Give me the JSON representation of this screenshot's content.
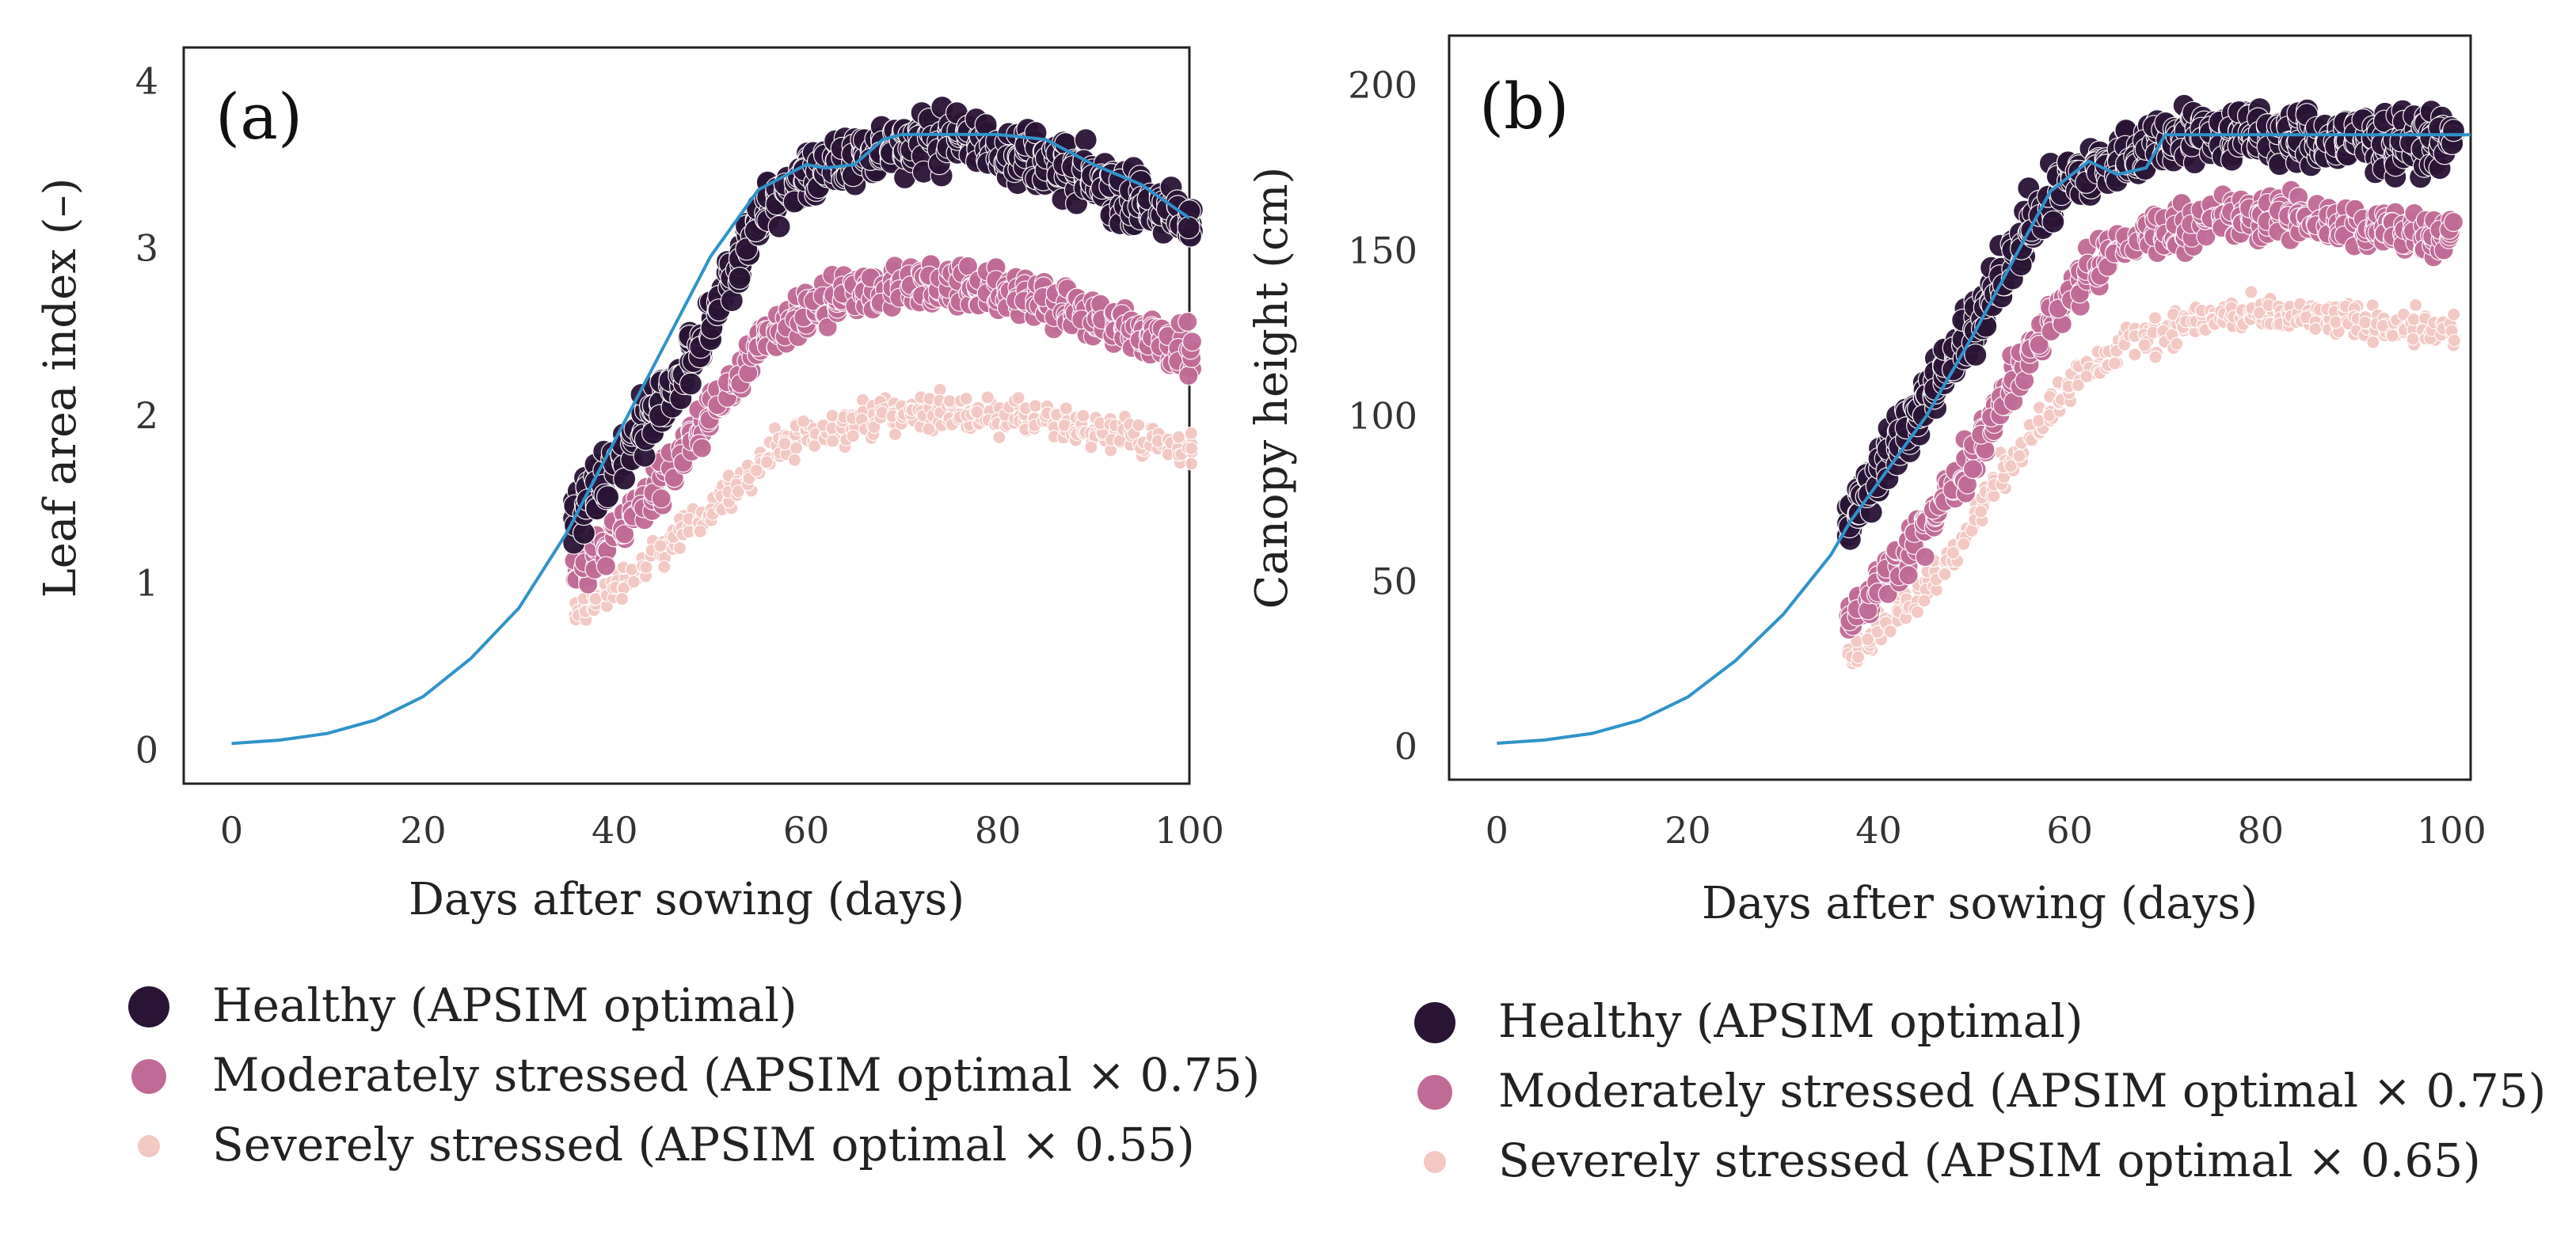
{
  "colors": {
    "healthy": "#2a1436",
    "moderate": "#c06a96",
    "severe": "#f3c7c2",
    "line": "#2f93c9",
    "axis": "#222222"
  },
  "chart_data": [
    {
      "type": "scatter",
      "panel_label": "(a)",
      "xlabel": "Days after sowing (days)",
      "ylabel": "Leaf area index (–)",
      "xlim": [
        -5,
        100
      ],
      "ylim": [
        -0.2,
        4.2
      ],
      "xticks": [
        "0",
        "20",
        "40",
        "60",
        "80",
        "100"
      ],
      "yticks": [
        "0",
        "1",
        "2",
        "3",
        "4"
      ],
      "series": [
        {
          "name": "Healthy (APSIM optimal)",
          "x": [
            36,
            40,
            44,
            48,
            52,
            56,
            60,
            64,
            68,
            72,
            76,
            80,
            84,
            88,
            92,
            96,
            100
          ],
          "y": [
            1.4,
            1.7,
            2.0,
            2.35,
            2.8,
            3.25,
            3.45,
            3.5,
            3.6,
            3.65,
            3.65,
            3.6,
            3.55,
            3.45,
            3.35,
            3.25,
            3.15
          ]
        },
        {
          "name": "Moderately stressed (APSIM optimal × 0.75)",
          "x": [
            36,
            40,
            44,
            48,
            52,
            56,
            60,
            64,
            68,
            72,
            76,
            80,
            84,
            88,
            92,
            96,
            100
          ],
          "y": [
            1.05,
            1.3,
            1.55,
            1.85,
            2.15,
            2.45,
            2.6,
            2.7,
            2.75,
            2.78,
            2.78,
            2.75,
            2.7,
            2.62,
            2.55,
            2.48,
            2.4
          ]
        },
        {
          "name": "Severely stressed (APSIM optimal × 0.55)",
          "x": [
            36,
            40,
            44,
            48,
            52,
            56,
            60,
            64,
            68,
            72,
            76,
            80,
            84,
            88,
            92,
            96,
            100
          ],
          "y": [
            0.8,
            0.98,
            1.15,
            1.35,
            1.55,
            1.75,
            1.88,
            1.95,
            2.0,
            2.02,
            2.02,
            2.0,
            1.97,
            1.93,
            1.9,
            1.85,
            1.8
          ]
        }
      ],
      "model_line": {
        "x": [
          0,
          5,
          10,
          15,
          20,
          25,
          30,
          35,
          40,
          45,
          50,
          55,
          60,
          62,
          65,
          68,
          70,
          75,
          80,
          85,
          90,
          95,
          100
        ],
        "y": [
          0.04,
          0.06,
          0.1,
          0.18,
          0.32,
          0.55,
          0.85,
          1.3,
          1.85,
          2.4,
          2.95,
          3.35,
          3.5,
          3.48,
          3.5,
          3.65,
          3.68,
          3.68,
          3.68,
          3.65,
          3.5,
          3.38,
          3.18
        ]
      },
      "legend": [
        {
          "label": "Healthy (APSIM optimal)"
        },
        {
          "label": "Moderately stressed (APSIM optimal × 0.75)"
        },
        {
          "label": "Severely stressed (APSIM optimal × 0.55)"
        }
      ]
    },
    {
      "type": "scatter",
      "panel_label": "(b)",
      "xlabel": "Days after sowing (days)",
      "ylabel": "Canopy height (cm)",
      "xlim": [
        -5,
        102
      ],
      "ylim": [
        -10,
        215
      ],
      "xticks": [
        "0",
        "20",
        "40",
        "60",
        "80",
        "100"
      ],
      "yticks": [
        "0",
        "50",
        "100",
        "150",
        "200"
      ],
      "series": [
        {
          "name": "Healthy (APSIM optimal)",
          "x": [
            37,
            40,
            44,
            48,
            52,
            56,
            60,
            64,
            68,
            72,
            76,
            80,
            84,
            88,
            92,
            96,
            100
          ],
          "y": [
            68,
            85,
            100,
            118,
            138,
            158,
            172,
            175,
            182,
            185,
            185,
            185,
            184,
            183,
            183,
            183,
            183
          ]
        },
        {
          "name": "Moderately stressed (APSIM optimal × 0.75)",
          "x": [
            37,
            40,
            44,
            48,
            52,
            56,
            60,
            64,
            68,
            72,
            76,
            80,
            84,
            88,
            92,
            96,
            100
          ],
          "y": [
            38,
            48,
            62,
            80,
            100,
            120,
            138,
            148,
            155,
            158,
            160,
            160,
            160,
            158,
            157,
            156,
            155
          ]
        },
        {
          "name": "Severely stressed (APSIM optimal × 0.65)",
          "x": [
            37,
            40,
            44,
            48,
            52,
            56,
            60,
            64,
            68,
            72,
            76,
            80,
            84,
            88,
            92,
            96,
            100
          ],
          "y": [
            28,
            35,
            45,
            60,
            78,
            95,
            110,
            118,
            124,
            128,
            130,
            130,
            130,
            129,
            128,
            127,
            126
          ]
        }
      ],
      "model_line": {
        "x": [
          0,
          5,
          10,
          15,
          20,
          25,
          30,
          35,
          37,
          40,
          45,
          50,
          55,
          58,
          62,
          65,
          68,
          70,
          80,
          90,
          100,
          102
        ],
        "y": [
          1,
          2,
          4,
          8,
          15,
          26,
          40,
          58,
          68,
          80,
          100,
          125,
          152,
          168,
          177,
          173,
          175,
          185,
          185,
          185,
          185,
          185
        ]
      },
      "legend": [
        {
          "label": "Healthy (APSIM optimal)"
        },
        {
          "label": "Moderately stressed (APSIM optimal × 0.75)"
        },
        {
          "label": "Severely stressed (APSIM optimal × 0.65)"
        }
      ]
    }
  ]
}
